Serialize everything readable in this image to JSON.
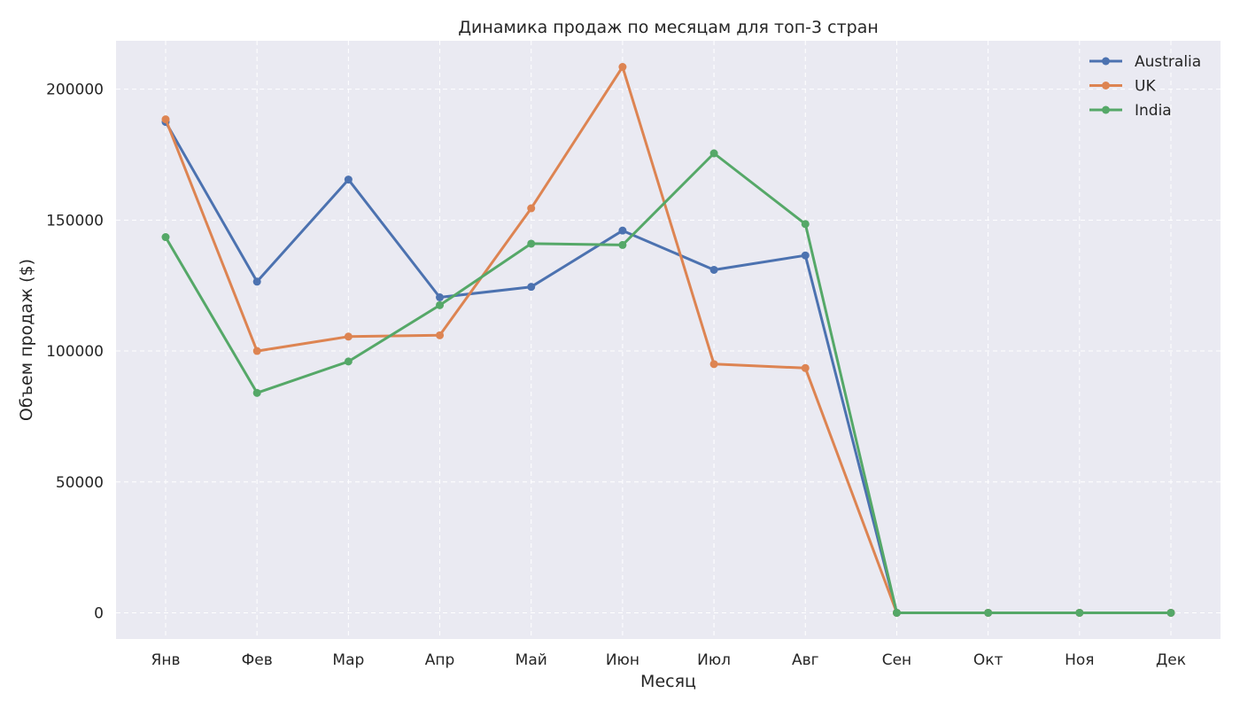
{
  "chart_data": {
    "type": "line",
    "title": "Динамика продаж по месяцам для топ-3 стран",
    "xlabel": "Месяц",
    "ylabel": "Объем продаж ($)",
    "categories": [
      "Янв",
      "Фев",
      "Мар",
      "Апр",
      "Май",
      "Июн",
      "Июл",
      "Авг",
      "Сен",
      "Окт",
      "Ноя",
      "Дек"
    ],
    "yticks": [
      0,
      50000,
      100000,
      150000,
      200000
    ],
    "ylim": [
      -10000,
      218500
    ],
    "grid": true,
    "legend_position": "top-right",
    "series": [
      {
        "name": "Australia",
        "color": "#4c72b0",
        "values": [
          187500,
          126500,
          165500,
          120500,
          124500,
          146000,
          131000,
          136500,
          0,
          0,
          0,
          0
        ]
      },
      {
        "name": "UK",
        "color": "#dd8452",
        "values": [
          188500,
          100000,
          105500,
          106000,
          154500,
          208500,
          95000,
          93500,
          0,
          0,
          0,
          0
        ]
      },
      {
        "name": "India",
        "color": "#55a868",
        "values": [
          143500,
          84000,
          96000,
          117500,
          141000,
          140500,
          175500,
          148500,
          0,
          0,
          0,
          0
        ]
      }
    ],
    "plot_background": "#eaeaf2",
    "grid_color": "#ffffff"
  }
}
